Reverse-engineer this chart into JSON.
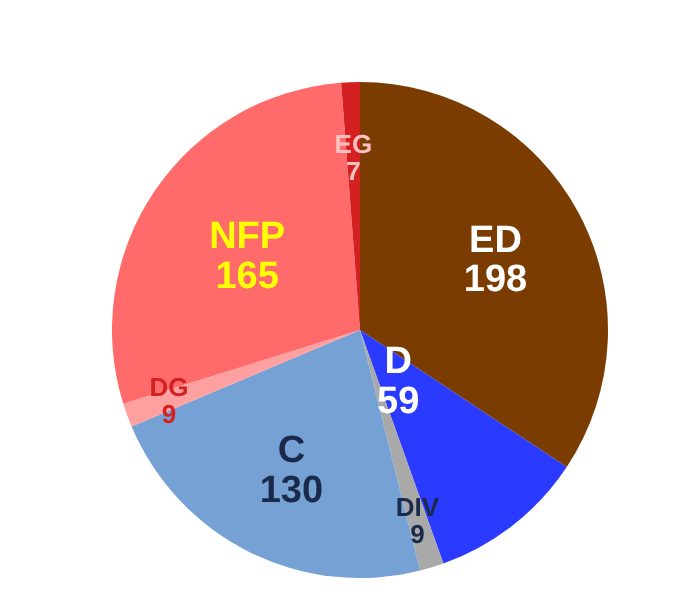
{
  "chart_data": {
    "type": "pie",
    "categories": [
      "ED",
      "D",
      "DIV",
      "C",
      "DG",
      "NFP",
      "EG"
    ],
    "values": [
      198,
      59,
      9,
      130,
      9,
      165,
      7
    ],
    "colors": [
      "#7a3c00",
      "#2a3aff",
      "#a9a9a9",
      "#76a1d4",
      "#ffa0a0",
      "#ff6b6b",
      "#d42020"
    ],
    "data_labels": true
  }
}
